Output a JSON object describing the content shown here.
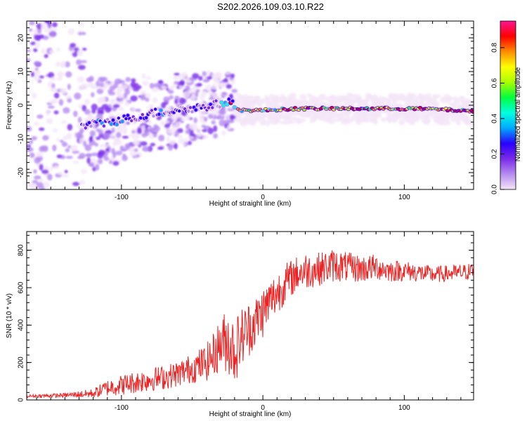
{
  "title": "S202.2026.109.03.10.R22",
  "chart_data": [
    {
      "type": "heatmap",
      "name": "spectrogram",
      "xlabel": "Height of straight line (km)",
      "ylabel": "Frequency (Hz)",
      "xlim": [
        -167,
        149
      ],
      "ylim": [
        -25,
        25
      ],
      "xticks": [
        -100,
        0,
        100
      ],
      "xtick_labels": [
        "-100",
        "0",
        "100"
      ],
      "yticks": [
        -20,
        -10,
        0,
        10,
        20
      ],
      "ytick_labels": [
        "-20",
        "-10",
        "0",
        "10",
        "20"
      ],
      "tone_line": [
        {
          "x": -125,
          "f": -6
        },
        {
          "x": -110,
          "f": -5
        },
        {
          "x": -95,
          "f": -4
        },
        {
          "x": -80,
          "f": -2.5
        },
        {
          "x": -65,
          "f": -1.5
        },
        {
          "x": -50,
          "f": -1
        },
        {
          "x": -35,
          "f": 0
        },
        {
          "x": -25,
          "f": 1
        },
        {
          "x": -15,
          "f": -1.5
        },
        {
          "x": 0,
          "f": -1.5
        },
        {
          "x": 25,
          "f": -1
        },
        {
          "x": 50,
          "f": -1
        },
        {
          "x": 75,
          "f": -1
        },
        {
          "x": 100,
          "f": -1
        },
        {
          "x": 125,
          "f": -1.2
        },
        {
          "x": 149,
          "f": -1.8
        }
      ],
      "colorbar": {
        "label": "Normalized spectral amplitude",
        "range": [
          0,
          0.95
        ],
        "ticks": [
          0.0,
          0.2,
          0.4,
          0.6,
          0.8
        ],
        "tick_labels": [
          "0.0",
          "0.2",
          "0.4",
          "0.6",
          "0.8"
        ],
        "colors": [
          "#f4e6f8",
          "#b58cf0",
          "#7a2be8",
          "#2a00ff",
          "#00a8ff",
          "#00ffe0",
          "#00ff40",
          "#a8ff00",
          "#ffff00",
          "#ff8c00",
          "#ff0000",
          "#ff1493"
        ]
      }
    },
    {
      "type": "line",
      "name": "snr",
      "xlabel": "Height of straight line (km)",
      "ylabel": "SNR (10 * v/v)",
      "xlim": [
        -167,
        149
      ],
      "ylim": [
        0,
        900
      ],
      "xticks": [
        -100,
        0,
        100
      ],
      "xtick_labels": [
        "-100",
        "0",
        "100"
      ],
      "yticks": [
        0,
        200,
        400,
        600,
        800
      ],
      "ytick_labels": [
        "0",
        "200",
        "400",
        "600",
        "800"
      ],
      "color": "#ee2222",
      "x": [
        -167,
        -140,
        -120,
        -110,
        -100,
        -90,
        -80,
        -70,
        -60,
        -50,
        -40,
        -35,
        -30,
        -25,
        -20,
        -15,
        -10,
        -5,
        0,
        5,
        10,
        15,
        20,
        25,
        30,
        40,
        50,
        60,
        70,
        80,
        90,
        100,
        110,
        120,
        130,
        140,
        149
      ],
      "y": [
        20,
        25,
        35,
        65,
        80,
        95,
        110,
        120,
        140,
        170,
        200,
        240,
        300,
        320,
        260,
        340,
        380,
        420,
        470,
        530,
        570,
        620,
        650,
        680,
        690,
        700,
        720,
        710,
        700,
        710,
        690,
        690,
        680,
        670,
        675,
        680,
        690
      ],
      "noise": [
        8,
        12,
        25,
        45,
        55,
        60,
        65,
        65,
        70,
        80,
        100,
        120,
        140,
        180,
        180,
        160,
        150,
        140,
        140,
        120,
        120,
        110,
        100,
        95,
        100,
        90,
        90,
        80,
        75,
        70,
        60,
        55,
        50,
        45,
        45,
        45,
        45
      ]
    }
  ]
}
